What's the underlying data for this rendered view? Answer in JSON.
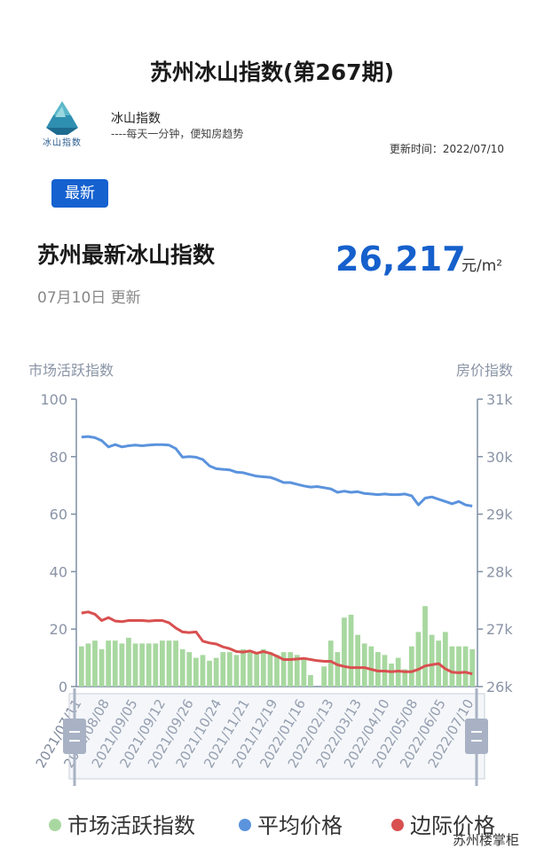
{
  "header": {
    "title": "苏州冰山指数(第267期)",
    "brand": "冰山指数",
    "logo_text": "冰山指数",
    "slogan": "----每天一分钟，便知房趋势",
    "updated": "更新时间：2022/07/10"
  },
  "summary": {
    "badge": "最新",
    "headline": "苏州最新冰山指数",
    "price": "26,217",
    "unit": "元/m²",
    "update_note": "07月10日 更新"
  },
  "watermark": "苏州楼掌柜",
  "colors": {
    "activity": "#a8d8a0",
    "average": "#5b93dd",
    "marginal": "#d95050",
    "axis": "#7f8fa6"
  },
  "chart_data": {
    "type": "bar+line",
    "left_axis_title": "市场活跃指数",
    "right_axis_title": "房价指数",
    "left_ylim": [
      0,
      100
    ],
    "left_ticks": [
      "0",
      "20",
      "40",
      "60",
      "80",
      "100"
    ],
    "right_ylim": [
      26000,
      31000
    ],
    "right_ticks": [
      "26k",
      "27k",
      "28k",
      "29k",
      "30k",
      "31k"
    ],
    "x_tick_labels": [
      "2021/07/11",
      "2021/08/08",
      "2021/09/05",
      "2021/09/12",
      "2021/09/26",
      "2021/10/24",
      "2021/11/21",
      "2021/12/19",
      "2022/01/16",
      "2022/02/13",
      "2022/03/13",
      "2022/04/10",
      "2022/05/08",
      "2022/06/05",
      "2022/07/10"
    ],
    "legend": [
      "市场活跃指数",
      "平均价格",
      "边际价格"
    ],
    "grid": false,
    "series": [
      {
        "name": "市场活跃指数",
        "type": "bar",
        "values": [
          14,
          15,
          16,
          13,
          16,
          16,
          15,
          17,
          15,
          15,
          15,
          15,
          16,
          16,
          16,
          13,
          12,
          10,
          11,
          9,
          10,
          12,
          12,
          11,
          13,
          12,
          12,
          13,
          12,
          11,
          12,
          12,
          11,
          10,
          4,
          0,
          7,
          16,
          12,
          24,
          25,
          18,
          15,
          14,
          12,
          11,
          8,
          10,
          6,
          14,
          19,
          28,
          18,
          16,
          19,
          14,
          14,
          14,
          13
        ]
      },
      {
        "name": "平均价格",
        "type": "line",
        "values": [
          30340,
          30350,
          30330,
          30280,
          30170,
          30210,
          30170,
          30190,
          30200,
          30190,
          30200,
          30210,
          30210,
          30200,
          30140,
          29990,
          30000,
          29990,
          29950,
          29840,
          29790,
          29780,
          29770,
          29730,
          29720,
          29690,
          29660,
          29650,
          29640,
          29600,
          29550,
          29550,
          29520,
          29490,
          29470,
          29480,
          29460,
          29440,
          29380,
          29400,
          29380,
          29390,
          29360,
          29350,
          29340,
          29350,
          29340,
          29340,
          29350,
          29320,
          29160,
          29280,
          29300,
          29260,
          29220,
          29180,
          29220,
          29160,
          29140
        ]
      },
      {
        "name": "边际价格",
        "type": "line",
        "values": [
          27280,
          27300,
          27260,
          27150,
          27200,
          27140,
          27130,
          27150,
          27150,
          27150,
          27140,
          27150,
          27150,
          27110,
          27020,
          26950,
          26940,
          26950,
          26790,
          26760,
          26740,
          26690,
          26660,
          26610,
          26600,
          26620,
          26580,
          26610,
          26580,
          26530,
          26470,
          26470,
          26480,
          26490,
          26470,
          26450,
          26440,
          26440,
          26380,
          26350,
          26330,
          26330,
          26330,
          26300,
          26270,
          26270,
          26260,
          26270,
          26260,
          26260,
          26300,
          26360,
          26380,
          26400,
          26310,
          26250,
          26240,
          26250,
          26220
        ]
      }
    ]
  }
}
